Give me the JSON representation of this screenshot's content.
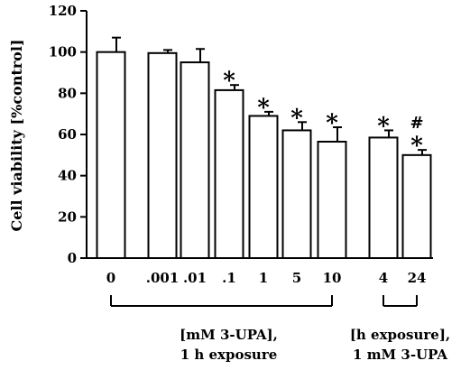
{
  "chart_data": {
    "type": "bar",
    "title": "",
    "ylabel": "Cell viability [%control]",
    "xlabel": "",
    "ylim": [
      0,
      120
    ],
    "yticks": [
      0,
      20,
      40,
      60,
      80,
      100,
      120
    ],
    "grid": false,
    "legend": "none",
    "bar_fill": "#ffffff",
    "bar_stroke": "#000000",
    "categories": [
      "0",
      ".001",
      ".01",
      ".1",
      "1",
      "5",
      "10",
      "4",
      "24"
    ],
    "values": [
      100,
      99.5,
      95,
      81.5,
      69,
      62,
      56.5,
      58.5,
      50
    ],
    "errors": [
      7,
      1.5,
      6.5,
      2.5,
      2,
      4,
      7,
      3.5,
      2.5
    ],
    "significance_markers": [
      "",
      "",
      "",
      "*",
      "*",
      "*",
      "*",
      "*",
      "*"
    ],
    "secondary_markers": [
      "",
      "",
      "",
      "",
      "",
      "",
      "",
      "",
      "#"
    ],
    "groups": [
      {
        "label_line1": "[mM 3-UPA],",
        "label_line2": "1 h exposure",
        "members": [
          0,
          1,
          2,
          3,
          4,
          5,
          6
        ]
      },
      {
        "label_line1": "[h exposure],",
        "label_line2": "1 mM 3-UPA",
        "members": [
          7,
          8
        ]
      }
    ]
  }
}
